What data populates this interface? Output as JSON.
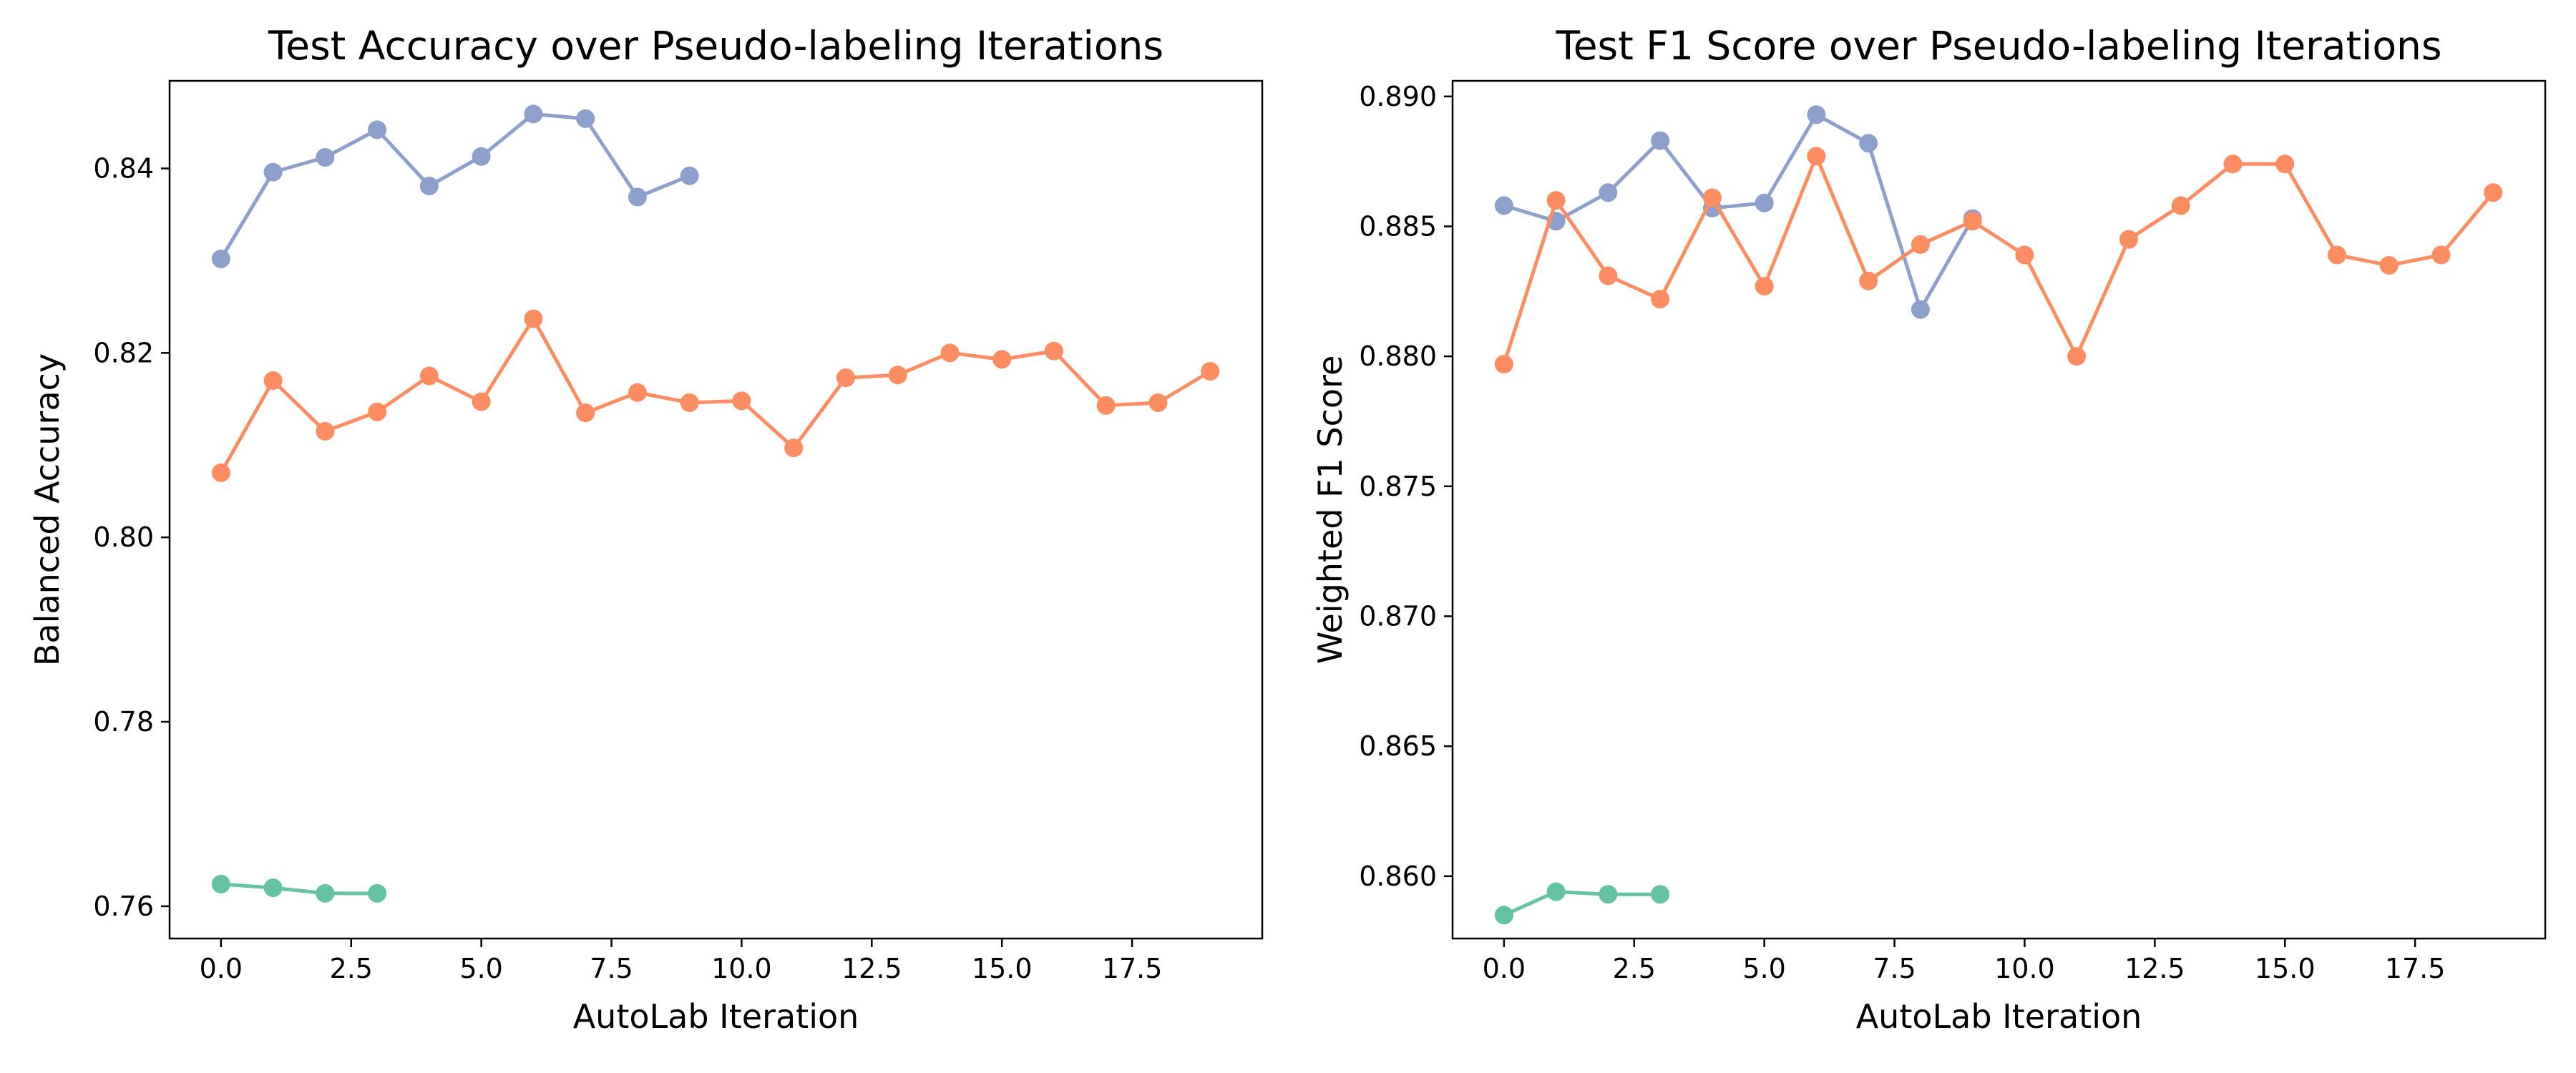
{
  "chart_data": [
    {
      "type": "line",
      "title": "Test Accuracy over Pseudo-labeling Iterations",
      "xlabel": "AutoLab Iteration",
      "ylabel": "Balanced Accuracy",
      "xlim": [
        -0.9875,
        20.0
      ],
      "ylim": [
        0.7565,
        0.8495
      ],
      "xticks": [
        0.0,
        2.5,
        5.0,
        7.5,
        10.0,
        12.5,
        15.0,
        17.5
      ],
      "xtick_labels": [
        "0.0",
        "2.5",
        "5.0",
        "7.5",
        "10.0",
        "12.5",
        "15.0",
        "17.5"
      ],
      "yticks": [
        0.76,
        0.78,
        0.8,
        0.82,
        0.84
      ],
      "ytick_labels": [
        "0.76",
        "0.78",
        "0.80",
        "0.82",
        "0.84"
      ],
      "grid": false,
      "series": [
        {
          "color": "#8da0cb",
          "x": [
            0,
            1,
            2,
            3,
            4,
            5,
            6,
            7,
            8,
            9
          ],
          "y": [
            0.8302,
            0.8396,
            0.8412,
            0.8442,
            0.8381,
            0.8413,
            0.8459,
            0.8454,
            0.8369,
            0.8392
          ]
        },
        {
          "color": "#fc8d62",
          "x": [
            0,
            1,
            2,
            3,
            4,
            5,
            6,
            7,
            8,
            9,
            10,
            11,
            12,
            13,
            14,
            15,
            16,
            17,
            18,
            19
          ],
          "y": [
            0.807,
            0.817,
            0.8115,
            0.8136,
            0.8175,
            0.8147,
            0.8237,
            0.8135,
            0.8157,
            0.8146,
            0.8148,
            0.8097,
            0.8173,
            0.8176,
            0.82,
            0.8193,
            0.8202,
            0.8143,
            0.8146,
            0.818
          ]
        },
        {
          "color": "#66c2a5",
          "x": [
            0,
            1,
            2,
            3
          ],
          "y": [
            0.7624,
            0.762,
            0.7614,
            0.7614
          ]
        }
      ]
    },
    {
      "type": "line",
      "title": "Test F1 Score over Pseudo-labeling Iterations",
      "xlabel": "AutoLab Iteration",
      "ylabel": "Weighted F1 Score",
      "xlim": [
        -0.9875,
        20.0
      ],
      "ylim": [
        0.8576,
        0.8906
      ],
      "xticks": [
        0.0,
        2.5,
        5.0,
        7.5,
        10.0,
        12.5,
        15.0,
        17.5
      ],
      "xtick_labels": [
        "0.0",
        "2.5",
        "5.0",
        "7.5",
        "10.0",
        "12.5",
        "15.0",
        "17.5"
      ],
      "yticks": [
        0.86,
        0.865,
        0.87,
        0.875,
        0.88,
        0.885,
        0.89
      ],
      "ytick_labels": [
        "0.860",
        "0.865",
        "0.870",
        "0.875",
        "0.880",
        "0.885",
        "0.890"
      ],
      "grid": false,
      "series": [
        {
          "color": "#8da0cb",
          "x": [
            0,
            1,
            2,
            3,
            4,
            5,
            6,
            7,
            8,
            9
          ],
          "y": [
            0.8858,
            0.8852,
            0.8863,
            0.8883,
            0.8857,
            0.8859,
            0.8893,
            0.8882,
            0.8818,
            0.8853
          ]
        },
        {
          "color": "#fc8d62",
          "x": [
            0,
            1,
            2,
            3,
            4,
            5,
            6,
            7,
            8,
            9,
            10,
            11,
            12,
            13,
            14,
            15,
            16,
            17,
            18,
            19
          ],
          "y": [
            0.8797,
            0.886,
            0.8831,
            0.8822,
            0.8861,
            0.8827,
            0.8877,
            0.8829,
            0.8843,
            0.8852,
            0.8839,
            0.88,
            0.8845,
            0.8858,
            0.8874,
            0.8874,
            0.8839,
            0.8835,
            0.8839,
            0.8863
          ]
        },
        {
          "color": "#66c2a5",
          "x": [
            0,
            1,
            2,
            3
          ],
          "y": [
            0.8585,
            0.8594,
            0.8593,
            0.8593
          ]
        }
      ]
    }
  ]
}
